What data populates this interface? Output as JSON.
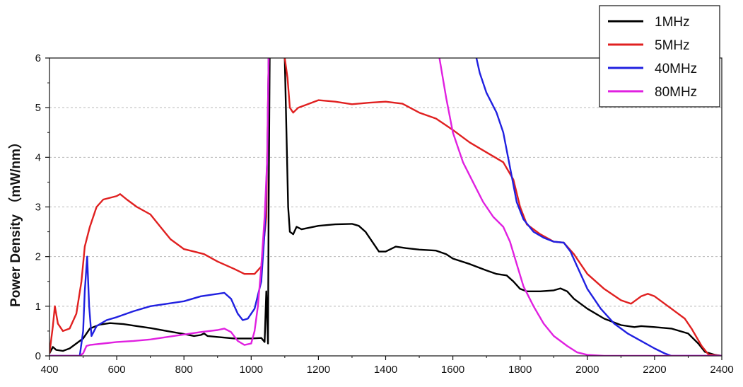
{
  "chart_data": {
    "type": "line",
    "title": "",
    "xlabel": "",
    "ylabel": "Power Density  （mW/nm）",
    "xlim": [
      400,
      2400
    ],
    "ylim": [
      0,
      6
    ],
    "xticks": [
      "400",
      "600",
      "800",
      "1000",
      "1200",
      "1400",
      "1600",
      "1800",
      "2000",
      "2200",
      "2400"
    ],
    "yticks": [
      "0",
      "1",
      "2",
      "3",
      "4",
      "5",
      "6"
    ],
    "grid": "horizontal dashed",
    "legend_position": "top-right",
    "series": [
      {
        "name": "1MHz",
        "color": "#000000",
        "points": [
          [
            400,
            0.05
          ],
          [
            410,
            0.18
          ],
          [
            420,
            0.12
          ],
          [
            440,
            0.1
          ],
          [
            460,
            0.15
          ],
          [
            480,
            0.25
          ],
          [
            500,
            0.35
          ],
          [
            520,
            0.55
          ],
          [
            550,
            0.63
          ],
          [
            580,
            0.66
          ],
          [
            620,
            0.64
          ],
          [
            660,
            0.6
          ],
          [
            700,
            0.56
          ],
          [
            750,
            0.5
          ],
          [
            800,
            0.44
          ],
          [
            830,
            0.4
          ],
          [
            850,
            0.42
          ],
          [
            860,
            0.45
          ],
          [
            870,
            0.4
          ],
          [
            900,
            0.38
          ],
          [
            950,
            0.35
          ],
          [
            1000,
            0.35
          ],
          [
            1030,
            0.36
          ],
          [
            1040,
            0.28
          ],
          [
            1045,
            1.3
          ],
          [
            1050,
            0.25
          ],
          [
            1052,
            3.0
          ],
          [
            1055,
            6.0
          ],
          null,
          [
            1100,
            6.0
          ],
          [
            1105,
            4.5
          ],
          [
            1110,
            3.0
          ],
          [
            1115,
            2.5
          ],
          [
            1125,
            2.45
          ],
          [
            1135,
            2.6
          ],
          [
            1150,
            2.55
          ],
          [
            1200,
            2.62
          ],
          [
            1250,
            2.65
          ],
          [
            1300,
            2.66
          ],
          [
            1320,
            2.62
          ],
          [
            1340,
            2.5
          ],
          [
            1360,
            2.3
          ],
          [
            1380,
            2.1
          ],
          [
            1400,
            2.1
          ],
          [
            1430,
            2.2
          ],
          [
            1460,
            2.17
          ],
          [
            1500,
            2.14
          ],
          [
            1550,
            2.12
          ],
          [
            1580,
            2.05
          ],
          [
            1600,
            1.96
          ],
          [
            1650,
            1.85
          ],
          [
            1700,
            1.72
          ],
          [
            1730,
            1.65
          ],
          [
            1760,
            1.62
          ],
          [
            1780,
            1.5
          ],
          [
            1800,
            1.35
          ],
          [
            1820,
            1.3
          ],
          [
            1860,
            1.3
          ],
          [
            1900,
            1.32
          ],
          [
            1920,
            1.36
          ],
          [
            1940,
            1.3
          ],
          [
            1960,
            1.15
          ],
          [
            2000,
            0.95
          ],
          [
            2050,
            0.75
          ],
          [
            2100,
            0.62
          ],
          [
            2140,
            0.58
          ],
          [
            2160,
            0.6
          ],
          [
            2200,
            0.58
          ],
          [
            2250,
            0.55
          ],
          [
            2300,
            0.45
          ],
          [
            2330,
            0.25
          ],
          [
            2350,
            0.08
          ],
          [
            2380,
            0.02
          ],
          [
            2400,
            0.0
          ]
        ]
      },
      {
        "name": "5MHz",
        "color": "#e02020",
        "points": [
          [
            400,
            0.05
          ],
          [
            410,
            0.6
          ],
          [
            416,
            1.0
          ],
          [
            425,
            0.65
          ],
          [
            440,
            0.5
          ],
          [
            460,
            0.55
          ],
          [
            480,
            0.85
          ],
          [
            495,
            1.5
          ],
          [
            505,
            2.2
          ],
          [
            520,
            2.6
          ],
          [
            540,
            3.0
          ],
          [
            560,
            3.15
          ],
          [
            600,
            3.22
          ],
          [
            610,
            3.26
          ],
          [
            630,
            3.15
          ],
          [
            660,
            3.0
          ],
          [
            700,
            2.85
          ],
          [
            730,
            2.6
          ],
          [
            760,
            2.35
          ],
          [
            800,
            2.15
          ],
          [
            830,
            2.1
          ],
          [
            860,
            2.05
          ],
          [
            900,
            1.9
          ],
          [
            950,
            1.75
          ],
          [
            980,
            1.65
          ],
          [
            1010,
            1.65
          ],
          [
            1030,
            1.8
          ],
          [
            1045,
            2.8
          ],
          [
            1052,
            6.0
          ],
          null,
          [
            1100,
            6.0
          ],
          [
            1108,
            5.6
          ],
          [
            1115,
            5.0
          ],
          [
            1125,
            4.9
          ],
          [
            1140,
            5.0
          ],
          [
            1160,
            5.05
          ],
          [
            1200,
            5.15
          ],
          [
            1250,
            5.12
          ],
          [
            1300,
            5.07
          ],
          [
            1350,
            5.1
          ],
          [
            1400,
            5.12
          ],
          [
            1450,
            5.08
          ],
          [
            1500,
            4.9
          ],
          [
            1550,
            4.78
          ],
          [
            1600,
            4.55
          ],
          [
            1650,
            4.3
          ],
          [
            1700,
            4.1
          ],
          [
            1750,
            3.9
          ],
          [
            1780,
            3.55
          ],
          [
            1800,
            3.0
          ],
          [
            1820,
            2.65
          ],
          [
            1860,
            2.45
          ],
          [
            1900,
            2.3
          ],
          [
            1930,
            2.28
          ],
          [
            1960,
            2.05
          ],
          [
            2000,
            1.65
          ],
          [
            2050,
            1.35
          ],
          [
            2100,
            1.12
          ],
          [
            2130,
            1.05
          ],
          [
            2160,
            1.2
          ],
          [
            2180,
            1.25
          ],
          [
            2200,
            1.2
          ],
          [
            2250,
            0.95
          ],
          [
            2290,
            0.75
          ],
          [
            2310,
            0.55
          ],
          [
            2340,
            0.2
          ],
          [
            2360,
            0.03
          ],
          [
            2400,
            0.0
          ]
        ]
      },
      {
        "name": "40MHz",
        "color": "#2020e0",
        "points": [
          [
            400,
            0.0
          ],
          [
            490,
            0.0
          ],
          [
            500,
            0.5
          ],
          [
            505,
            1.3
          ],
          [
            512,
            2.0
          ],
          [
            518,
            1.0
          ],
          [
            525,
            0.4
          ],
          [
            540,
            0.6
          ],
          [
            570,
            0.72
          ],
          [
            600,
            0.78
          ],
          [
            650,
            0.9
          ],
          [
            700,
            1.0
          ],
          [
            750,
            1.05
          ],
          [
            800,
            1.1
          ],
          [
            850,
            1.2
          ],
          [
            900,
            1.25
          ],
          [
            920,
            1.27
          ],
          [
            940,
            1.15
          ],
          [
            960,
            0.85
          ],
          [
            975,
            0.72
          ],
          [
            990,
            0.75
          ],
          [
            1010,
            0.95
          ],
          [
            1030,
            1.5
          ],
          [
            1040,
            2.5
          ],
          [
            1048,
            4.0
          ],
          [
            1052,
            6.0
          ],
          null,
          [
            1670,
            6.0
          ],
          [
            1680,
            5.7
          ],
          [
            1700,
            5.3
          ],
          [
            1730,
            4.9
          ],
          [
            1750,
            4.5
          ],
          [
            1770,
            3.8
          ],
          [
            1790,
            3.1
          ],
          [
            1810,
            2.75
          ],
          [
            1840,
            2.5
          ],
          [
            1870,
            2.38
          ],
          [
            1900,
            2.3
          ],
          [
            1930,
            2.28
          ],
          [
            1950,
            2.1
          ],
          [
            1970,
            1.8
          ],
          [
            2000,
            1.35
          ],
          [
            2040,
            0.95
          ],
          [
            2080,
            0.65
          ],
          [
            2120,
            0.45
          ],
          [
            2160,
            0.3
          ],
          [
            2200,
            0.15
          ],
          [
            2230,
            0.05
          ],
          [
            2250,
            0.0
          ],
          [
            2400,
            0.0
          ]
        ]
      },
      {
        "name": "80MHz",
        "color": "#e020e0",
        "points": [
          [
            400,
            0.0
          ],
          [
            490,
            0.0
          ],
          [
            500,
            0.05
          ],
          [
            510,
            0.2
          ],
          [
            520,
            0.22
          ],
          [
            560,
            0.25
          ],
          [
            600,
            0.28
          ],
          [
            650,
            0.3
          ],
          [
            700,
            0.33
          ],
          [
            750,
            0.38
          ],
          [
            800,
            0.43
          ],
          [
            850,
            0.48
          ],
          [
            900,
            0.52
          ],
          [
            920,
            0.55
          ],
          [
            940,
            0.48
          ],
          [
            960,
            0.3
          ],
          [
            980,
            0.22
          ],
          [
            1000,
            0.25
          ],
          [
            1010,
            0.5
          ],
          [
            1020,
            1.0
          ],
          [
            1030,
            1.8
          ],
          [
            1040,
            2.8
          ],
          [
            1048,
            4.0
          ],
          [
            1052,
            6.0
          ],
          null,
          [
            1560,
            6.0
          ],
          [
            1580,
            5.2
          ],
          [
            1600,
            4.5
          ],
          [
            1630,
            3.9
          ],
          [
            1660,
            3.5
          ],
          [
            1690,
            3.1
          ],
          [
            1720,
            2.8
          ],
          [
            1750,
            2.6
          ],
          [
            1770,
            2.3
          ],
          [
            1790,
            1.85
          ],
          [
            1810,
            1.4
          ],
          [
            1840,
            1.0
          ],
          [
            1870,
            0.65
          ],
          [
            1900,
            0.4
          ],
          [
            1940,
            0.2
          ],
          [
            1970,
            0.07
          ],
          [
            2000,
            0.02
          ],
          [
            2050,
            0.0
          ],
          [
            2400,
            0.0
          ]
        ]
      }
    ]
  }
}
